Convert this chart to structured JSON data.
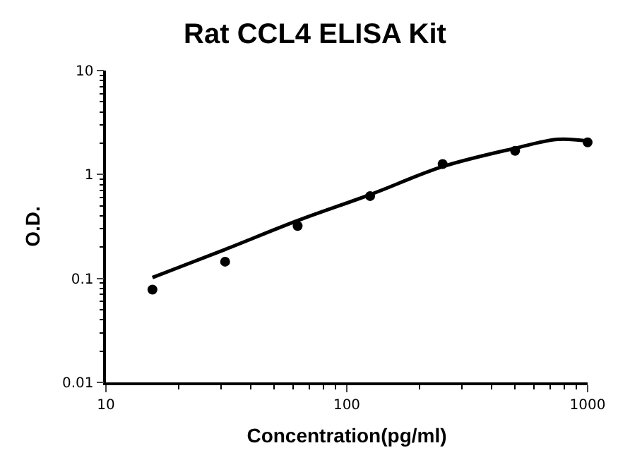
{
  "chart_data": {
    "type": "scatter",
    "title": "Rat CCL4 ELISA Kit",
    "xlabel": "Concentration(pg/ml)",
    "ylabel": "O.D.",
    "series": [
      {
        "color": "#000000",
        "marker": "circle",
        "x": [
          15.6,
          31.25,
          62.5,
          125,
          250,
          500,
          1000
        ],
        "values": [
          0.078,
          0.145,
          0.32,
          0.62,
          1.26,
          1.69,
          2.04
        ]
      },
      {
        "type": "line",
        "color": "#000000",
        "marker": "none",
        "line_style": "solid",
        "x": [
          15.6,
          31.25,
          62.5,
          125,
          250,
          500,
          750,
          1000
        ],
        "values": [
          0.102,
          0.19,
          0.36,
          0.64,
          1.19,
          1.79,
          2.18,
          2.1
        ]
      }
    ],
    "xlim": [
      10,
      1000
    ],
    "ylim": [
      0.01,
      10
    ],
    "xticks": [
      10,
      100,
      1000
    ],
    "yticks": [
      0.01,
      0.1,
      1,
      10
    ],
    "log": "xy",
    "grid": false
  }
}
